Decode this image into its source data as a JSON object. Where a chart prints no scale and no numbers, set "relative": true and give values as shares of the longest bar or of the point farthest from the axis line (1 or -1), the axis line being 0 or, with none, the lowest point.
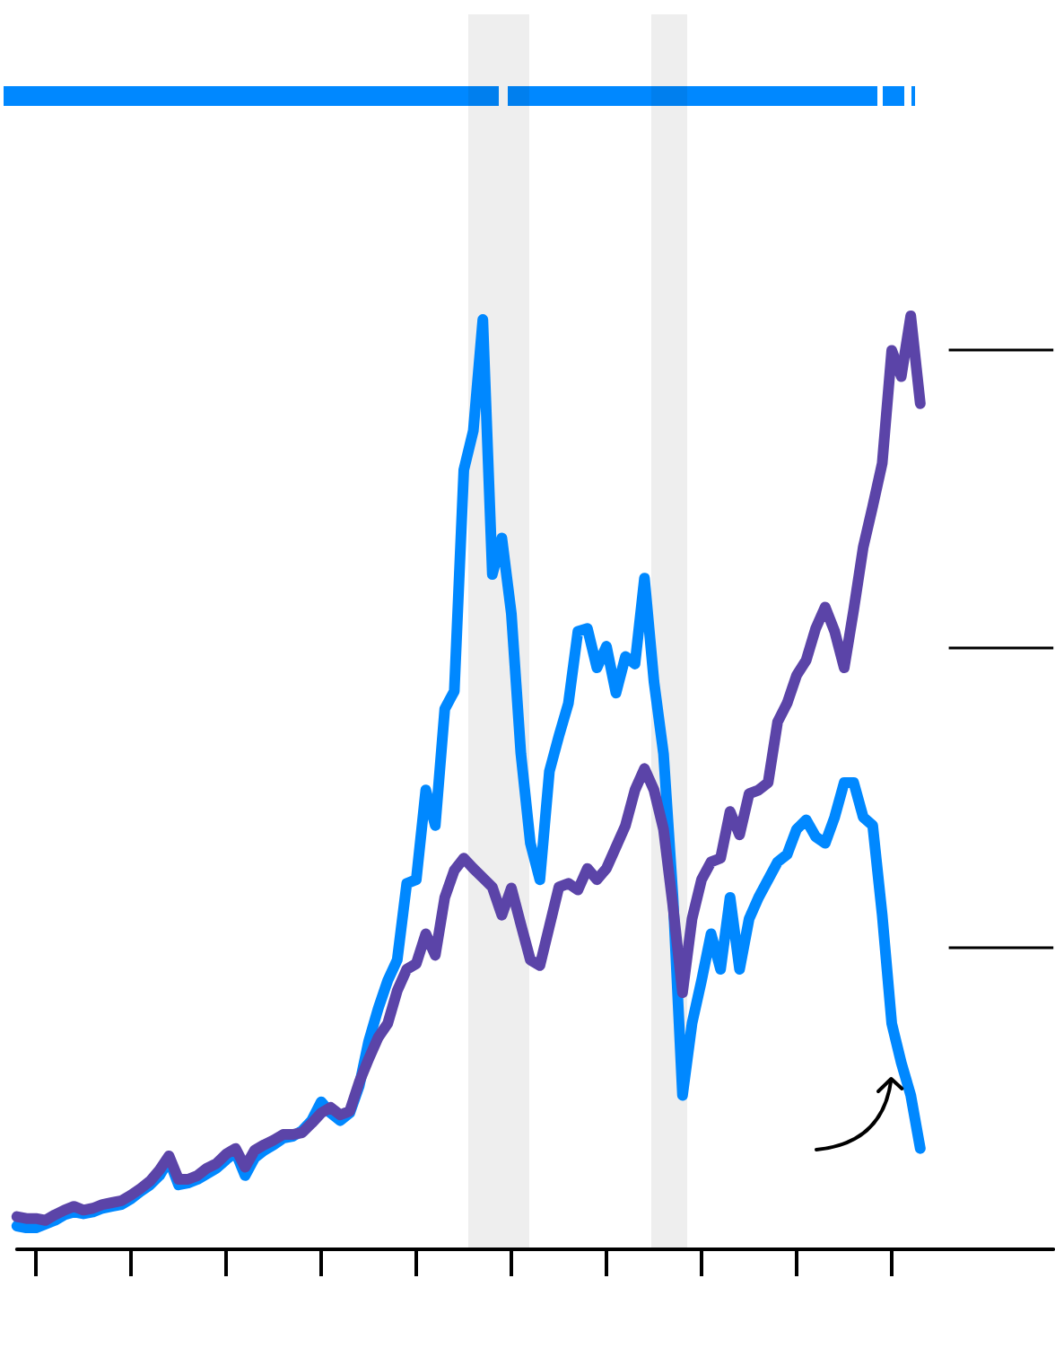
{
  "chart_data": {
    "type": "line",
    "relative": true,
    "categories": [
      null,
      null,
      null,
      null,
      null,
      null,
      null,
      null,
      null,
      null,
      null,
      null,
      null,
      null,
      null,
      null,
      null,
      null,
      null,
      null,
      null,
      null,
      null,
      null,
      null,
      null,
      null,
      null,
      null,
      null,
      null,
      null,
      null,
      null,
      null,
      null,
      null,
      null,
      null,
      null,
      null,
      null,
      null,
      null,
      null,
      null,
      null,
      null,
      null,
      null,
      null,
      null,
      null,
      null,
      null,
      null,
      null,
      null,
      null,
      null,
      null,
      null,
      null,
      null,
      null,
      null,
      null,
      null,
      null,
      null,
      null,
      null,
      null,
      null,
      null,
      null,
      null,
      null,
      null,
      null,
      null,
      null,
      null,
      null,
      null,
      null,
      null,
      null,
      null,
      null,
      null,
      null,
      null,
      null,
      null,
      null,
      null,
      null,
      null,
      null,
      null,
      null,
      null,
      null,
      null,
      null,
      null,
      null,
      null,
      null
    ],
    "series": [
      {
        "color": "#0088ff",
        "values": [
          0.025,
          0.023,
          0.023,
          0.027,
          0.031,
          0.037,
          0.04,
          0.038,
          0.04,
          0.044,
          0.046,
          0.048,
          0.054,
          0.062,
          0.069,
          0.079,
          0.096,
          0.069,
          0.071,
          0.075,
          0.081,
          0.087,
          0.096,
          0.104,
          0.079,
          0.098,
          0.106,
          0.112,
          0.119,
          0.121,
          0.127,
          0.138,
          0.158,
          0.146,
          0.138,
          0.146,
          0.175,
          0.223,
          0.258,
          0.288,
          0.31,
          0.392,
          0.396,
          0.492,
          0.454,
          0.579,
          0.598,
          0.835,
          0.877,
          0.996,
          0.723,
          0.762,
          0.681,
          0.531,
          0.435,
          0.396,
          0.512,
          0.55,
          0.585,
          0.662,
          0.665,
          0.623,
          0.646,
          0.596,
          0.635,
          0.627,
          0.719,
          0.608,
          0.531,
          0.377,
          0.165,
          0.242,
          0.288,
          0.338,
          0.3,
          0.377,
          0.3,
          0.354,
          0.377,
          0.396,
          0.415,
          0.423,
          0.45,
          0.46,
          0.442,
          0.435,
          0.463,
          0.5,
          0.5,
          0.463,
          0.454,
          0.358,
          0.242,
          0.2,
          0.165,
          0.108,
          null,
          null,
          null,
          null,
          null,
          null,
          null,
          null,
          null,
          null,
          null,
          null,
          null,
          null
        ]
      },
      {
        "color": "#5b44a8",
        "values": [
          0.035,
          0.033,
          0.033,
          0.031,
          0.037,
          0.042,
          0.046,
          0.042,
          0.044,
          0.048,
          0.05,
          0.052,
          0.058,
          0.065,
          0.073,
          0.085,
          0.1,
          0.075,
          0.075,
          0.079,
          0.087,
          0.092,
          0.102,
          0.108,
          0.088,
          0.106,
          0.112,
          0.117,
          0.123,
          0.123,
          0.125,
          0.135,
          0.146,
          0.152,
          0.144,
          0.148,
          0.179,
          0.204,
          0.227,
          0.242,
          0.277,
          0.3,
          0.306,
          0.338,
          0.315,
          0.377,
          0.406,
          0.419,
          0.408,
          0.398,
          0.388,
          0.358,
          0.387,
          0.348,
          0.31,
          0.304,
          0.346,
          0.388,
          0.392,
          0.385,
          0.408,
          0.396,
          0.408,
          0.431,
          0.454,
          0.492,
          0.515,
          0.492,
          0.45,
          0.367,
          0.275,
          0.354,
          0.396,
          0.415,
          0.419,
          0.469,
          0.444,
          0.488,
          0.492,
          0.5,
          0.565,
          0.585,
          0.615,
          0.631,
          0.665,
          0.688,
          0.662,
          0.623,
          0.685,
          0.752,
          0.796,
          0.842,
          0.963,
          0.935,
          1,
          0.906,
          null,
          null,
          null,
          null,
          null,
          null,
          null,
          null,
          null,
          null,
          null,
          null,
          null,
          null
        ]
      }
    ],
    "ref_lines": [
      {
        "axis": "y",
        "value": 0.323
      },
      {
        "axis": "y",
        "value": 0.644
      },
      {
        "axis": "y",
        "value": 0.963
      }
    ]
  }
}
